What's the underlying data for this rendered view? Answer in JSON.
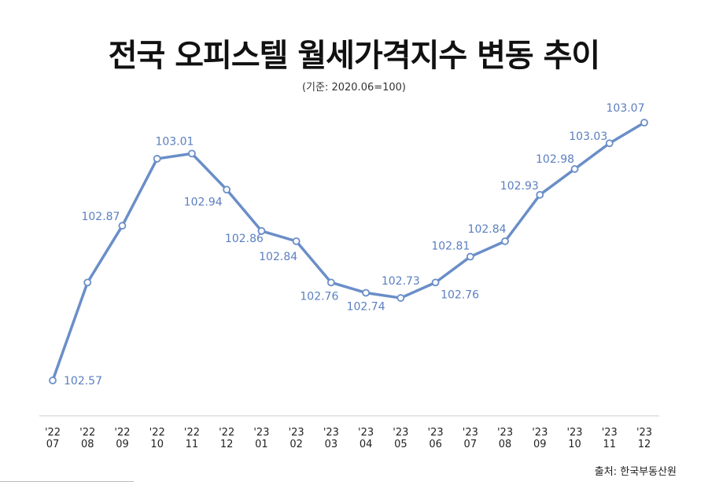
{
  "header": {
    "title": "전국 오피스텔 월세가격지수 변동 추이",
    "subtitle": "(기준: 2020.06=100)"
  },
  "footer": {
    "source": "출처: 한국부동산원"
  },
  "chart_data": {
    "type": "line",
    "title": "전국 오피스텔 월세가격지수 변동 추이",
    "subtitle": "(기준: 2020.06=100)",
    "xlabel": "",
    "ylabel": "",
    "grid": false,
    "categories": [
      "'22 07",
      "'22 08",
      "'22 09",
      "'22 10",
      "'22 11",
      "'22 12",
      "'23 01",
      "'23 02",
      "'23 03",
      "'23 04",
      "'23 05",
      "'23 06",
      "'23 07",
      "'23 08",
      "'23 09",
      "'23 10",
      "'23 11",
      "'23 12"
    ],
    "series": [
      {
        "name": "월세가격지수",
        "values": [
          102.57,
          102.76,
          102.87,
          103.0,
          103.01,
          102.94,
          102.86,
          102.84,
          102.76,
          102.74,
          102.73,
          102.76,
          102.81,
          102.84,
          102.93,
          102.98,
          103.03,
          103.07
        ],
        "labels": [
          "102.57",
          "",
          "102.87",
          "",
          "103.01",
          "102.94",
          "102.86",
          "102.84",
          "102.76",
          "102.74",
          "102.73",
          "102.76",
          "102.81",
          "102.84",
          "102.93",
          "102.98",
          "103.03",
          "103.07"
        ]
      }
    ],
    "line_color": "#6a8ec8",
    "label_color": "#5b7fc0"
  }
}
